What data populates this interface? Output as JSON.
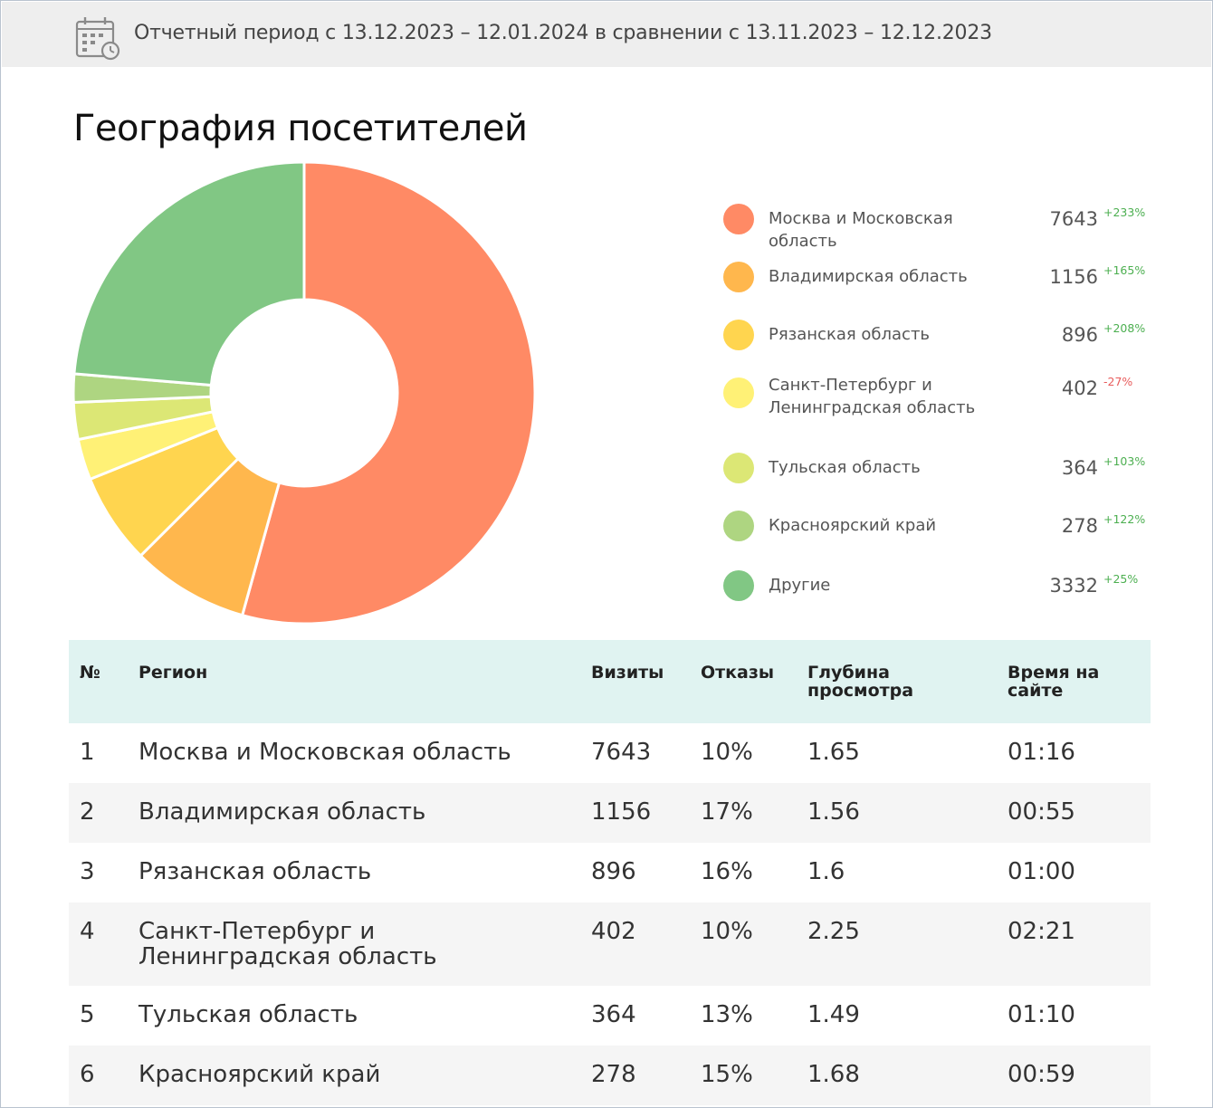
{
  "header": {
    "period_text": "Отчетный период с 13.12.2023 – 12.01.2024 в сравнении с 13.11.2023 – 12.12.2023",
    "icon": "calendar-clock-icon"
  },
  "section": {
    "title": "География посетителей"
  },
  "chart_data": {
    "type": "pie",
    "donut": true,
    "title": "География посетителей",
    "legend_position": "right",
    "categories": [
      "Москва и Московская область",
      "Владимирская область",
      "Рязанская область",
      "Санкт-Петербург и Ленинградская область",
      "Тульская область",
      "Красноярский край",
      "Другие"
    ],
    "values": [
      7643,
      1156,
      896,
      402,
      364,
      278,
      3332
    ],
    "changes": [
      "+233%",
      "+165%",
      "+208%",
      "-27%",
      "+103%",
      "+122%",
      "+25%"
    ],
    "colors": [
      "#ff8a65",
      "#ffb74d",
      "#ffd54f",
      "#fff176",
      "#dce775",
      "#aed581",
      "#81c784"
    ]
  },
  "table": {
    "headers": {
      "no": "№",
      "region": "Регион",
      "visits": "Визиты",
      "bounce": "Отказы",
      "depth": "Глубина просмотра",
      "time": "Время на сайте"
    },
    "rows": [
      {
        "no": "1",
        "region": "Москва и Московская область",
        "visits": "7643",
        "bounce": "10%",
        "depth": "1.65",
        "time": "01:16"
      },
      {
        "no": "2",
        "region": "Владимирская область",
        "visits": "1156",
        "bounce": "17%",
        "depth": "1.56",
        "time": "00:55"
      },
      {
        "no": "3",
        "region": "Рязанская область",
        "visits": "896",
        "bounce": "16%",
        "depth": "1.6",
        "time": "01:00"
      },
      {
        "no": "4",
        "region": "Санкт-Петербург и Ленинградская область",
        "visits": "402",
        "bounce": "10%",
        "depth": "2.25",
        "time": "02:21"
      },
      {
        "no": "5",
        "region": "Тульская область",
        "visits": "364",
        "bounce": "13%",
        "depth": "1.49",
        "time": "01:10"
      },
      {
        "no": "6",
        "region": "Красноярский край",
        "visits": "278",
        "bounce": "15%",
        "depth": "1.68",
        "time": "00:59"
      }
    ]
  }
}
